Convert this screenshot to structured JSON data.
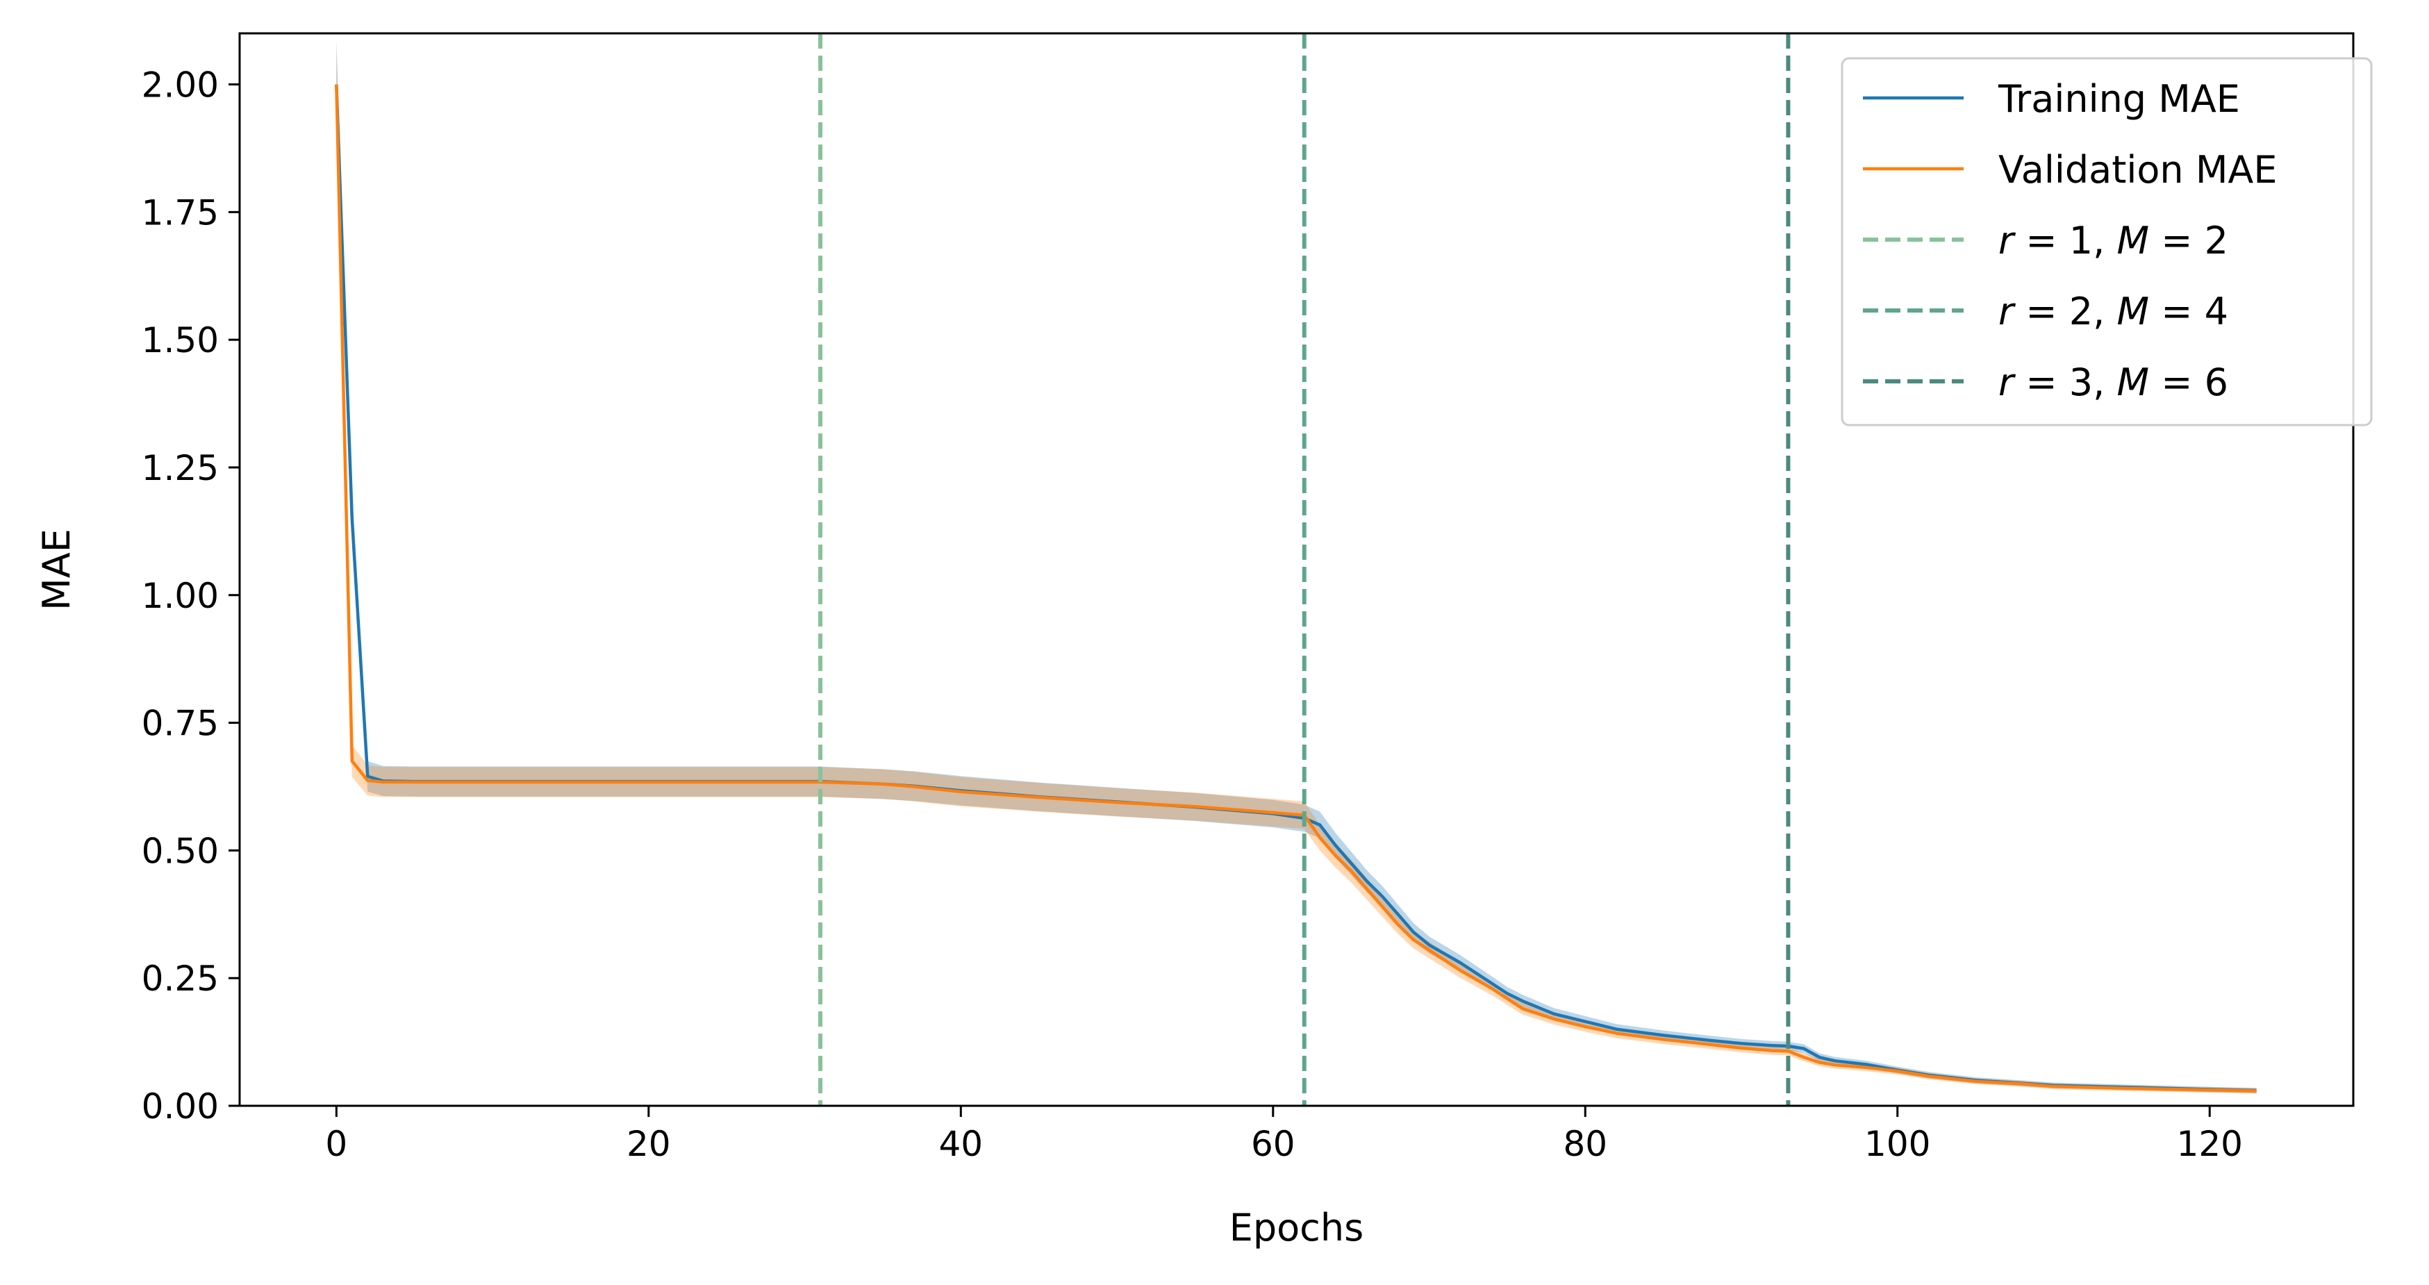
{
  "chart_data": {
    "type": "line",
    "title": "",
    "xlabel": "Epochs",
    "ylabel": "MAE",
    "xlim": [
      -6.2,
      129.2
    ],
    "ylim": [
      0,
      2.1
    ],
    "x_ticks": [
      0,
      20,
      40,
      60,
      80,
      100,
      120
    ],
    "x_tick_labels": [
      "0",
      "20",
      "40",
      "60",
      "80",
      "100",
      "120"
    ],
    "y_ticks": [
      0,
      0.25,
      0.5,
      0.75,
      1.0,
      1.25,
      1.5,
      1.75,
      2.0
    ],
    "y_tick_labels": [
      "0.00",
      "0.25",
      "0.50",
      "0.75",
      "1.00",
      "1.25",
      "1.50",
      "1.75",
      "2.00"
    ],
    "grid": false,
    "legend_position": "top-right",
    "series": [
      {
        "name": "Training MAE",
        "color": "#1f77b4",
        "x": [
          0,
          1,
          2,
          3,
          5,
          10,
          20,
          30,
          31,
          35,
          37,
          40,
          45,
          50,
          55,
          60,
          62,
          63,
          64,
          65,
          66,
          67,
          68,
          69,
          70,
          72,
          74,
          75,
          76,
          78,
          80,
          82,
          85,
          88,
          90,
          92,
          93,
          94,
          95,
          96,
          98,
          100,
          102,
          105,
          108,
          110,
          115,
          120,
          123
        ],
        "y": [
          2.0,
          1.15,
          0.645,
          0.636,
          0.635,
          0.635,
          0.635,
          0.635,
          0.635,
          0.63,
          0.626,
          0.617,
          0.605,
          0.595,
          0.585,
          0.572,
          0.563,
          0.55,
          0.51,
          0.475,
          0.44,
          0.41,
          0.375,
          0.34,
          0.315,
          0.28,
          0.24,
          0.22,
          0.205,
          0.18,
          0.165,
          0.15,
          0.138,
          0.128,
          0.122,
          0.118,
          0.117,
          0.112,
          0.095,
          0.088,
          0.081,
          0.07,
          0.06,
          0.05,
          0.044,
          0.04,
          0.036,
          0.032,
          0.03
        ]
      },
      {
        "name": "Validation MAE",
        "color": "#ff7f0e",
        "x": [
          0,
          1,
          2,
          3,
          5,
          10,
          20,
          30,
          31,
          35,
          37,
          40,
          45,
          50,
          55,
          60,
          62,
          63,
          64,
          65,
          66,
          67,
          68,
          69,
          70,
          72,
          74,
          75,
          76,
          78,
          80,
          82,
          85,
          88,
          90,
          92,
          93,
          94,
          95,
          96,
          98,
          100,
          102,
          105,
          108,
          110,
          115,
          120,
          123
        ],
        "y": [
          2.0,
          0.675,
          0.637,
          0.634,
          0.634,
          0.634,
          0.634,
          0.634,
          0.634,
          0.63,
          0.625,
          0.615,
          0.604,
          0.594,
          0.586,
          0.574,
          0.569,
          0.525,
          0.49,
          0.46,
          0.425,
          0.39,
          0.355,
          0.325,
          0.305,
          0.265,
          0.23,
          0.21,
          0.19,
          0.17,
          0.155,
          0.142,
          0.13,
          0.12,
          0.113,
          0.108,
          0.107,
          0.095,
          0.085,
          0.08,
          0.075,
          0.068,
          0.058,
          0.048,
          0.043,
          0.038,
          0.034,
          0.031,
          0.029
        ]
      }
    ],
    "vlines": [
      {
        "x": 31,
        "color": "#88c29a",
        "label_r": "1",
        "label_m": "2"
      },
      {
        "x": 62,
        "color": "#5fa68c",
        "label_r": "2",
        "label_m": "4"
      },
      {
        "x": 93,
        "color": "#4a8a7f",
        "label_r": "3",
        "label_m": "6"
      }
    ]
  }
}
